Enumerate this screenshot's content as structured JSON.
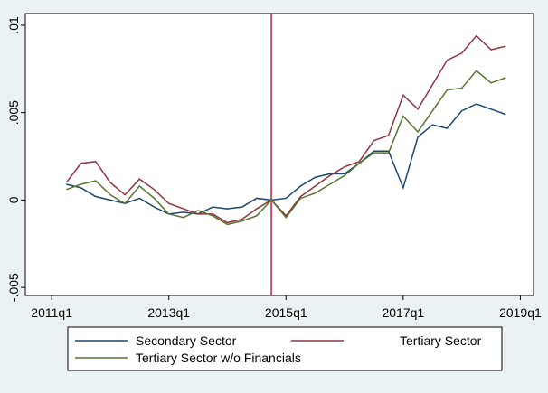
{
  "chart_data": {
    "type": "line",
    "x": [
      205,
      206,
      207,
      208,
      209,
      210,
      211,
      212,
      213,
      214,
      215,
      216,
      217,
      218,
      219,
      220,
      221,
      222,
      223,
      224,
      225,
      226,
      227,
      228,
      229,
      230,
      231,
      232,
      233,
      234,
      235
    ],
    "series": [
      {
        "name": "Secondary Sector",
        "color": "#1a476f",
        "values": [
          0.0009,
          0.0007,
          0.0002,
          0,
          -0.0002,
          0.0001,
          -0.0004,
          -0.0008,
          -0.0007,
          -0.0008,
          -0.0004,
          -0.0005,
          -0.0004,
          0.0001,
          0,
          0.0001,
          0.0008,
          0.0013,
          0.0015,
          0.0015,
          0.0021,
          0.0028,
          0.0028,
          0.0007,
          0.0036,
          0.0043,
          0.0041,
          0.0051,
          0.0055,
          0.0052,
          0.0049
        ]
      },
      {
        "name": "Tertiary Sector",
        "color": "#90353b",
        "values": [
          0.001,
          0.0021,
          0.0022,
          0.001,
          0.0003,
          0.0012,
          0.0006,
          -0.0002,
          -0.0005,
          -0.0008,
          -0.0008,
          -0.0013,
          -0.0011,
          -0.0005,
          0,
          -0.0009,
          0.0002,
          0.0008,
          0.0014,
          0.0019,
          0.0022,
          0.0034,
          0.0037,
          0.006,
          0.0052,
          0.0066,
          0.008,
          0.0084,
          0.0094,
          0.0086,
          0.0088
        ]
      },
      {
        "name": "Tertiary Sector w/o Financials",
        "color": "#55752f",
        "values": [
          0.0006,
          0.0009,
          0.0011,
          0.0003,
          -0.0002,
          0.0008,
          0.0001,
          -0.0008,
          -0.001,
          -0.0006,
          -0.0009,
          -0.0014,
          -0.0012,
          -0.0009,
          0,
          -0.001,
          0.0001,
          0.0004,
          0.0009,
          0.0014,
          0.0021,
          0.0027,
          0.0027,
          0.0048,
          0.0039,
          0.0051,
          0.0063,
          0.0064,
          0.0074,
          0.0067,
          0.007
        ]
      }
    ],
    "xlim": [
      202.2,
      236.9
    ],
    "xticks": [
      {
        "value": 204,
        "label": "2011q1"
      },
      {
        "value": 212,
        "label": "2013q1"
      },
      {
        "value": 220,
        "label": "2015q1"
      },
      {
        "value": 228,
        "label": "2017q1"
      },
      {
        "value": 236,
        "label": "2019q1"
      }
    ],
    "ylim": [
      -0.00546,
      0.01067
    ],
    "yticks": [
      {
        "value": -0.005,
        "label": "-.005"
      },
      0,
      {
        "value": 0.005,
        "label": ".005"
      },
      {
        "value": 0.01,
        "label": ".01"
      }
    ],
    "vline": {
      "value": 219,
      "color": "#b0243c"
    },
    "legend": "bottom"
  }
}
